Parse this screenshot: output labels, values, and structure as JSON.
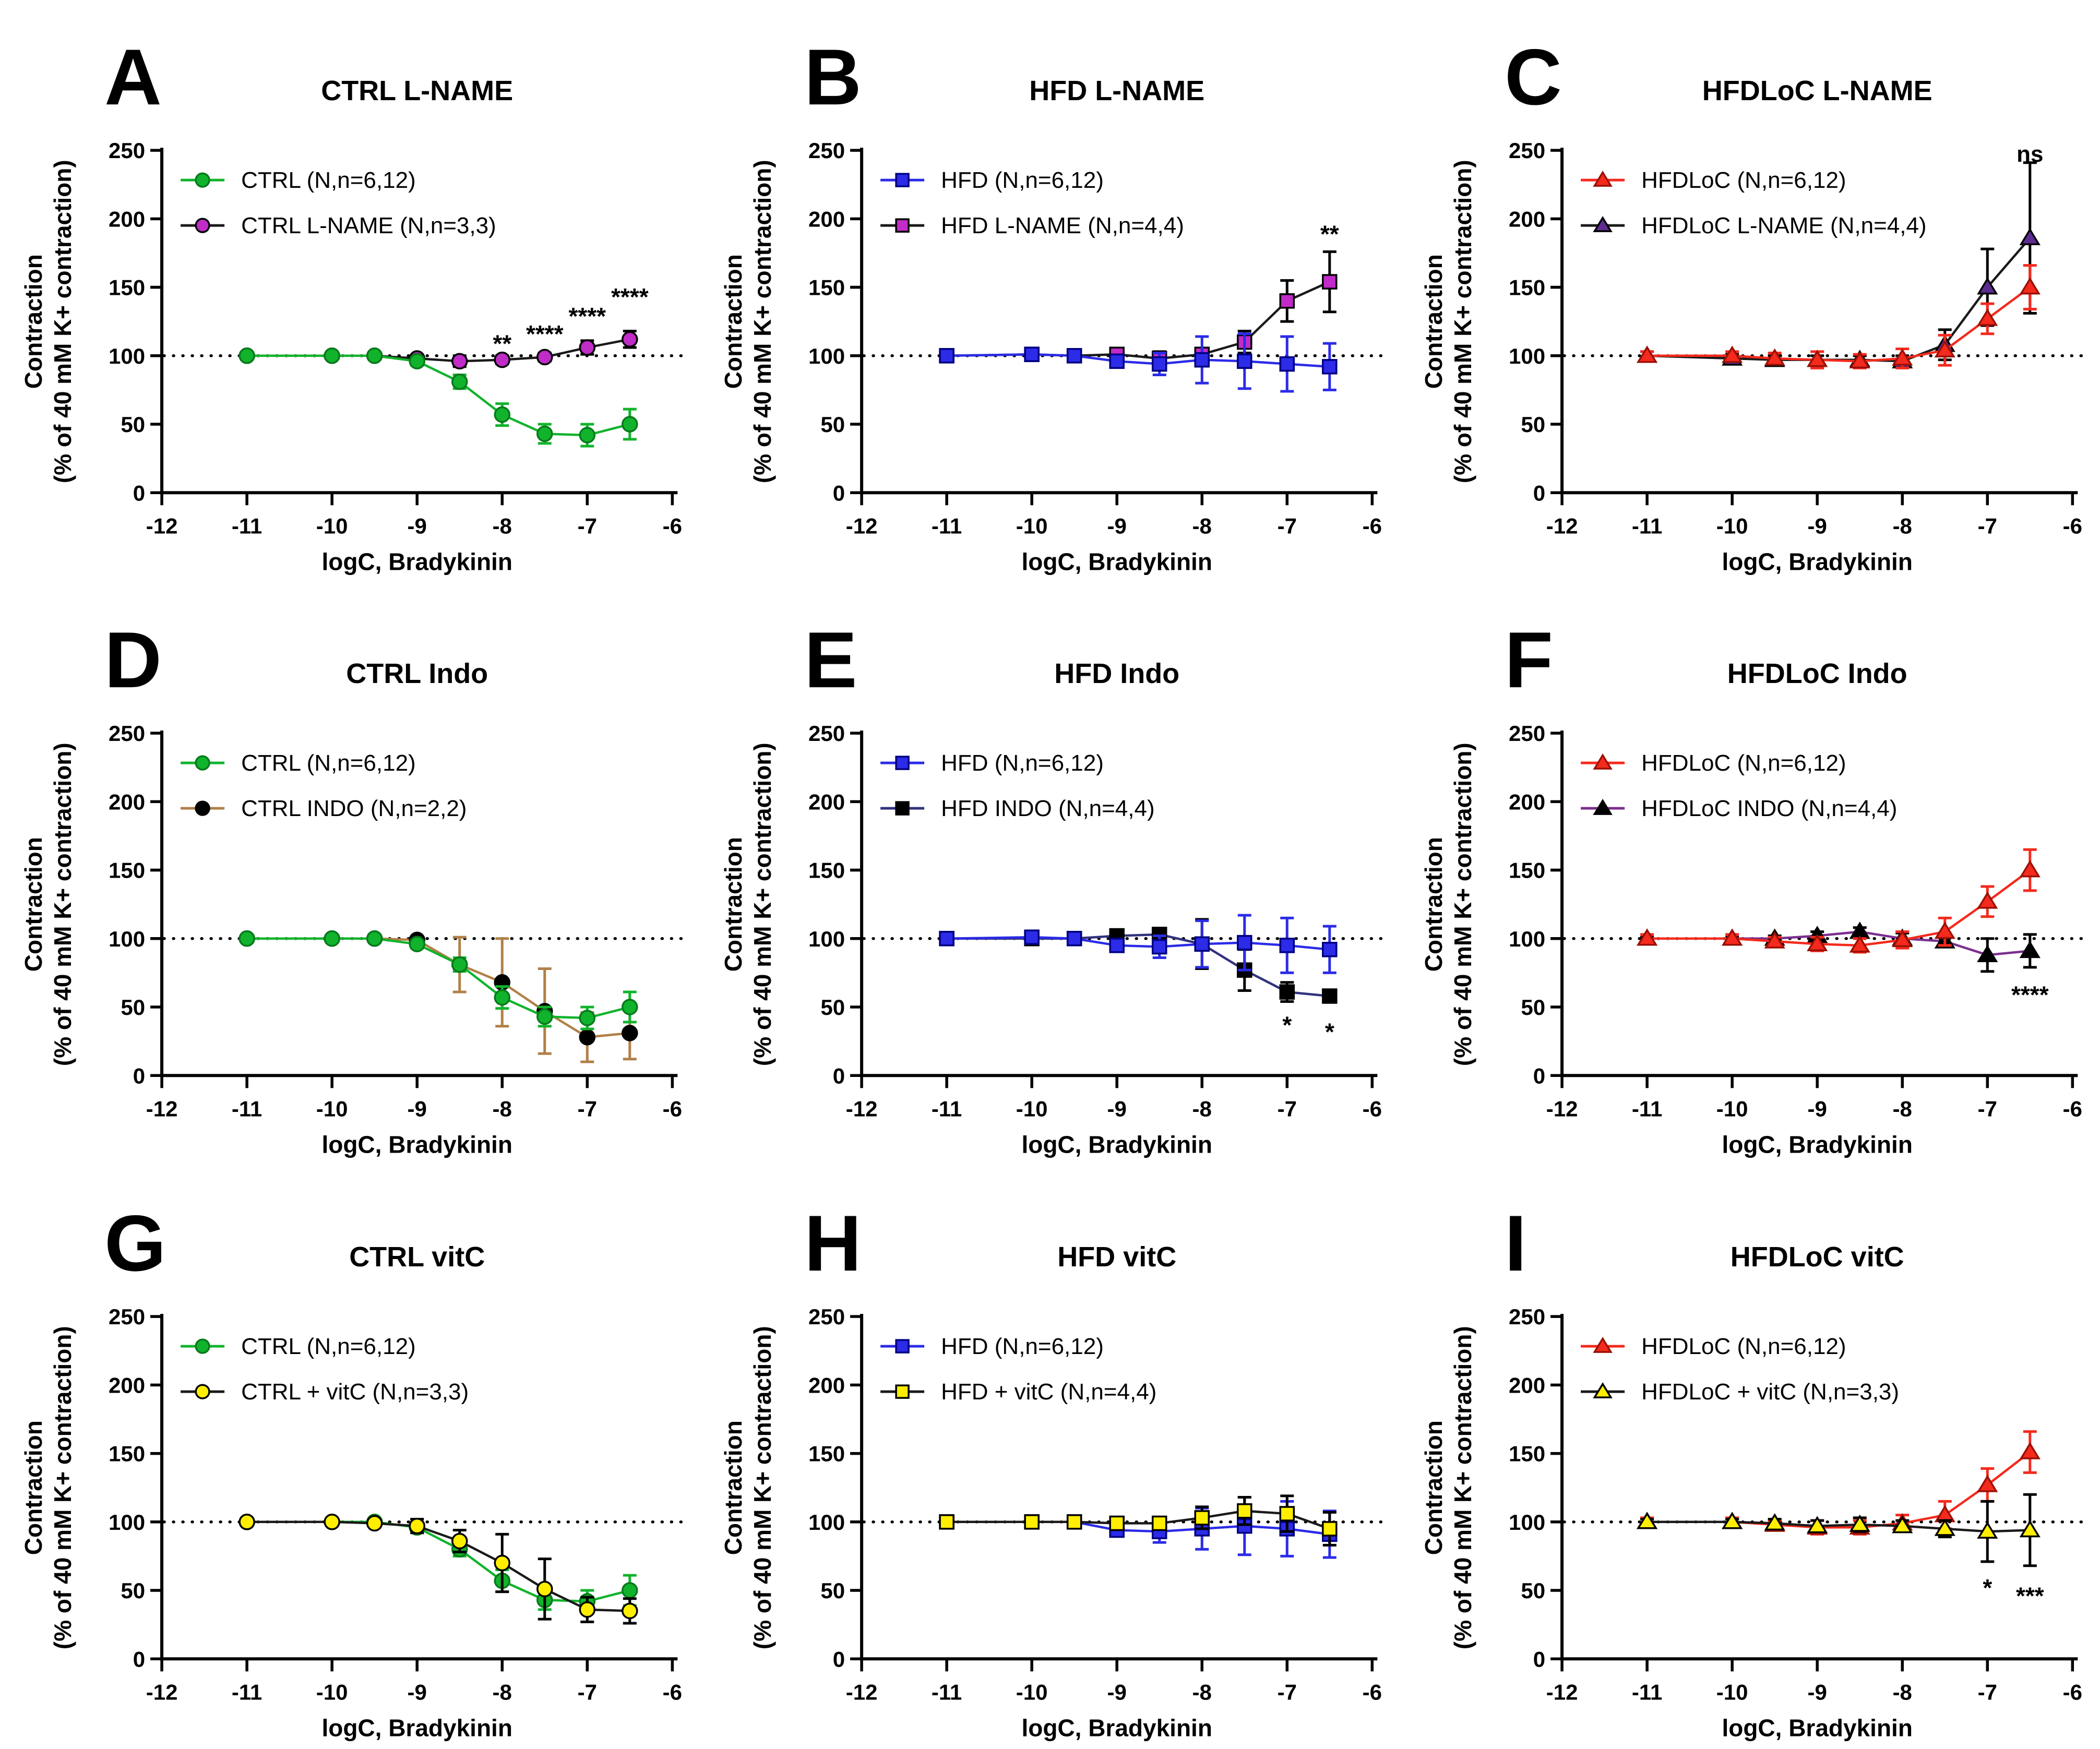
{
  "shared": {
    "x_label": "logC, Bradykinin",
    "y_label_line1": "Contraction",
    "y_label_line2": "(% of 40 mM K+ contraction)",
    "x_ticks": [
      -12,
      -11,
      -10,
      -9,
      -8,
      -7,
      -6
    ],
    "y_ticks": [
      0,
      50,
      100,
      150,
      200,
      250
    ],
    "xlim": [
      -12,
      -6
    ],
    "ylim": [
      0,
      250
    ],
    "reference_line_y": 100,
    "x_values": [
      -11,
      -10,
      -9.5,
      -9,
      -8.5,
      -8,
      -7.5,
      -7,
      -6.5
    ]
  },
  "colors": {
    "green": "#11B32C",
    "green_dark": "#077A1C",
    "magenta": "#BF2CC6",
    "blue": "#2B2BE8",
    "navy": "#000080",
    "red": "#F42A1D",
    "red_dark": "#9B1006",
    "purple": "#5E2C91",
    "tan": "#B08048",
    "indigo": "#32327E",
    "violet": "#7B2F8E",
    "yellow": "#FFEE00",
    "black": "#1A1A1A"
  },
  "chart_data": [
    {
      "type": "line",
      "panel_letter": "A",
      "title": "CTRL L-NAME",
      "top_series": 0,
      "series": [
        {
          "label": "CTRL (N,n=6,12)",
          "marker": "circle",
          "fill": "#11B32C",
          "stroke": "#077A1C",
          "line": "#11B32C",
          "err": "#11B32C",
          "values": [
            100,
            100,
            100,
            96,
            81,
            57,
            43,
            42,
            50
          ],
          "errors": [
            2,
            2,
            2,
            3,
            5,
            8,
            7,
            8,
            11
          ]
        },
        {
          "label": "CTRL L-NAME (N,n=3,3)",
          "marker": "circle",
          "fill": "#BF2CC6",
          "stroke": "#000000",
          "line": "#1A1A1A",
          "err": "#000000",
          "values": [
            100,
            100,
            100,
            98,
            96,
            97,
            99,
            106,
            112
          ],
          "errors": [
            2,
            2,
            2,
            2,
            4,
            3,
            3,
            5,
            6
          ]
        }
      ],
      "annotations": [
        {
          "text": "**",
          "x": -8,
          "y": 112
        },
        {
          "text": "****",
          "x": -7.5,
          "y": 119
        },
        {
          "text": "****",
          "x": -7,
          "y": 132
        },
        {
          "text": "****",
          "x": -6.5,
          "y": 146
        }
      ]
    },
    {
      "type": "line",
      "panel_letter": "B",
      "title": "HFD L-NAME",
      "top_series": 0,
      "series": [
        {
          "label": "HFD (N,n=6,12)",
          "marker": "square",
          "fill": "#2B2BE8",
          "stroke": "#000080",
          "line": "#2B2BE8",
          "err": "#2B2BE8",
          "values": [
            100,
            101,
            100,
            96,
            94,
            97,
            96,
            94,
            92
          ],
          "errors": [
            2,
            2,
            2,
            3,
            8,
            17,
            20,
            20,
            17
          ]
        },
        {
          "label": "HFD L-NAME (N,n=4,4)",
          "marker": "square",
          "fill": "#C32BC8",
          "stroke": "#000000",
          "line": "#1A1A1A",
          "err": "#000000",
          "values": [
            100,
            101,
            100,
            101,
            98,
            101,
            110,
            140,
            154
          ],
          "errors": [
            2,
            2,
            2,
            3,
            5,
            4,
            8,
            15,
            22
          ]
        }
      ],
      "annotations": [
        {
          "text": "**",
          "x": -6.5,
          "y": 192
        }
      ]
    },
    {
      "type": "line",
      "panel_letter": "C",
      "title": "HFDLoC L-NAME",
      "top_series": 0,
      "series": [
        {
          "label": "HFDLoC (N,n=6,12)",
          "marker": "triangle",
          "fill": "#F42A1D",
          "stroke": "#9B1006",
          "line": "#F42A1D",
          "err": "#F42A1D",
          "values": [
            100,
            100,
            98,
            97,
            96,
            98,
            104,
            127,
            150
          ],
          "errors": [
            3,
            3,
            4,
            6,
            5,
            7,
            11,
            11,
            16
          ]
        },
        {
          "label": "HFDLoC L-NAME (N,n=4,4)",
          "marker": "triangle",
          "fill": "#5E2C91",
          "stroke": "#000000",
          "line": "#1A1A1A",
          "err": "#000000",
          "values": [
            100,
            98,
            97,
            97,
            97,
            96,
            108,
            150,
            186
          ],
          "errors": [
            3,
            3,
            3,
            3,
            3,
            4,
            11,
            28,
            55
          ]
        }
      ],
      "annotations": [
        {
          "text": "ns",
          "x": -6.5,
          "y": 247
        }
      ]
    },
    {
      "type": "line",
      "panel_letter": "D",
      "title": "CTRL Indo",
      "top_series": 0,
      "series": [
        {
          "label": "CTRL (N,n=6,12)",
          "marker": "circle",
          "fill": "#11B32C",
          "stroke": "#077A1C",
          "line": "#11B32C",
          "err": "#11B32C",
          "values": [
            100,
            100,
            100,
            96,
            81,
            57,
            43,
            42,
            50
          ],
          "errors": [
            2,
            2,
            2,
            3,
            5,
            8,
            7,
            8,
            11
          ]
        },
        {
          "label": "CTRL INDO (N,n=2,2)",
          "marker": "circle",
          "fill": "#000000",
          "stroke": "#000000",
          "line": "#B08048",
          "err": "#B08048",
          "values": [
            100,
            100,
            100,
            99,
            81,
            68,
            47,
            28,
            31
          ],
          "errors": [
            1,
            1,
            1,
            2,
            20,
            32,
            31,
            18,
            19
          ]
        }
      ],
      "annotations": []
    },
    {
      "type": "line",
      "panel_letter": "E",
      "title": "HFD Indo",
      "top_series": 0,
      "series": [
        {
          "label": "HFD (N,n=6,12)",
          "marker": "square",
          "fill": "#2B2BE8",
          "stroke": "#000080",
          "line": "#2B2BE8",
          "err": "#2B2BE8",
          "values": [
            100,
            101,
            100,
            95,
            94,
            96,
            97,
            95,
            92
          ],
          "errors": [
            2,
            2,
            2,
            3,
            8,
            17,
            20,
            20,
            17
          ]
        },
        {
          "label": "HFD INDO (N,n=4,4)",
          "marker": "square",
          "fill": "#000000",
          "stroke": "#000000",
          "line": "#32327E",
          "err": "#000000",
          "values": [
            100,
            100,
            100,
            102,
            103,
            96,
            77,
            61,
            58
          ],
          "errors": [
            1,
            1,
            1,
            2,
            3,
            18,
            15,
            7,
            4
          ]
        }
      ],
      "annotations": [
        {
          "text": "*",
          "x": -7,
          "y": 40
        },
        {
          "text": "*",
          "x": -6.5,
          "y": 35
        }
      ]
    },
    {
      "type": "line",
      "panel_letter": "F",
      "title": "HFDLoC Indo",
      "top_series": 0,
      "series": [
        {
          "label": "HFDLoC (N,n=6,12)",
          "marker": "triangle",
          "fill": "#F42A1D",
          "stroke": "#9B1006",
          "line": "#F42A1D",
          "err": "#F42A1D",
          "values": [
            100,
            100,
            98,
            96,
            95,
            99,
            105,
            127,
            150
          ],
          "errors": [
            3,
            3,
            3,
            5,
            5,
            6,
            10,
            11,
            15
          ]
        },
        {
          "label": "HFDLoC INDO (N,n=4,4)",
          "marker": "triangle",
          "fill": "#000000",
          "stroke": "#000000",
          "line": "#7B2F8E",
          "err": "#000000",
          "values": [
            100,
            100,
            100,
            102,
            105,
            100,
            98,
            88,
            91
          ],
          "errors": [
            1,
            1,
            2,
            3,
            3,
            4,
            4,
            12,
            12
          ]
        }
      ],
      "annotations": [
        {
          "text": "****",
          "x": -6.5,
          "y": 62
        }
      ]
    },
    {
      "type": "line",
      "panel_letter": "G",
      "title": "CTRL vitC",
      "top_series": 1,
      "series": [
        {
          "label": "CTRL (N,n=6,12)",
          "marker": "circle",
          "fill": "#11B32C",
          "stroke": "#077A1C",
          "line": "#11B32C",
          "err": "#11B32C",
          "values": [
            100,
            100,
            100,
            96,
            80,
            57,
            43,
            42,
            50
          ],
          "errors": [
            2,
            2,
            2,
            3,
            5,
            8,
            7,
            8,
            11
          ]
        },
        {
          "label": "CTRL + vitC (N,n=3,3)",
          "marker": "circle",
          "fill": "#FFEE00",
          "stroke": "#000000",
          "line": "#1A1A1A",
          "err": "#000000",
          "values": [
            100,
            100,
            99,
            97,
            86,
            70,
            51,
            36,
            35
          ],
          "errors": [
            2,
            2,
            2,
            5,
            8,
            21,
            22,
            9,
            9
          ]
        }
      ],
      "annotations": []
    },
    {
      "type": "line",
      "panel_letter": "H",
      "title": "HFD vitC",
      "top_series": 1,
      "series": [
        {
          "label": "HFD (N,n=6,12)",
          "marker": "square",
          "fill": "#2B2BE8",
          "stroke": "#000080",
          "line": "#2B2BE8",
          "err": "#2B2BE8",
          "values": [
            100,
            100,
            100,
            94,
            93,
            95,
            97,
            95,
            91
          ],
          "errors": [
            2,
            2,
            2,
            3,
            8,
            15,
            21,
            20,
            17
          ]
        },
        {
          "label": "HFD + vitC (N,n=4,4)",
          "marker": "square",
          "fill": "#FFEE00",
          "stroke": "#000000",
          "line": "#1A1A1A",
          "err": "#000000",
          "values": [
            100,
            100,
            100,
            99,
            99,
            103,
            108,
            106,
            95
          ],
          "errors": [
            1,
            1,
            2,
            3,
            4,
            8,
            10,
            13,
            12
          ]
        }
      ],
      "annotations": []
    },
    {
      "type": "line",
      "panel_letter": "I",
      "title": "HFDLoC vitC",
      "top_series": 1,
      "series": [
        {
          "label": "HFDLoC (N,n=6,12)",
          "marker": "triangle",
          "fill": "#F42A1D",
          "stroke": "#9B1006",
          "line": "#F42A1D",
          "err": "#F42A1D",
          "values": [
            100,
            100,
            98,
            96,
            96,
            99,
            105,
            127,
            151
          ],
          "errors": [
            3,
            3,
            3,
            5,
            5,
            6,
            10,
            12,
            15
          ]
        },
        {
          "label": "HFDLoC + vitC (N,n=3,3)",
          "marker": "triangle",
          "fill": "#FFEE00",
          "stroke": "#000000",
          "line": "#1A1A1A",
          "err": "#000000",
          "values": [
            100,
            100,
            99,
            97,
            98,
            97,
            95,
            93,
            94
          ],
          "errors": [
            2,
            2,
            3,
            4,
            5,
            4,
            6,
            22,
            26
          ]
        }
      ],
      "annotations": [
        {
          "text": "*",
          "x": -7,
          "y": 55
        },
        {
          "text": "***",
          "x": -6.5,
          "y": 49
        }
      ]
    }
  ]
}
